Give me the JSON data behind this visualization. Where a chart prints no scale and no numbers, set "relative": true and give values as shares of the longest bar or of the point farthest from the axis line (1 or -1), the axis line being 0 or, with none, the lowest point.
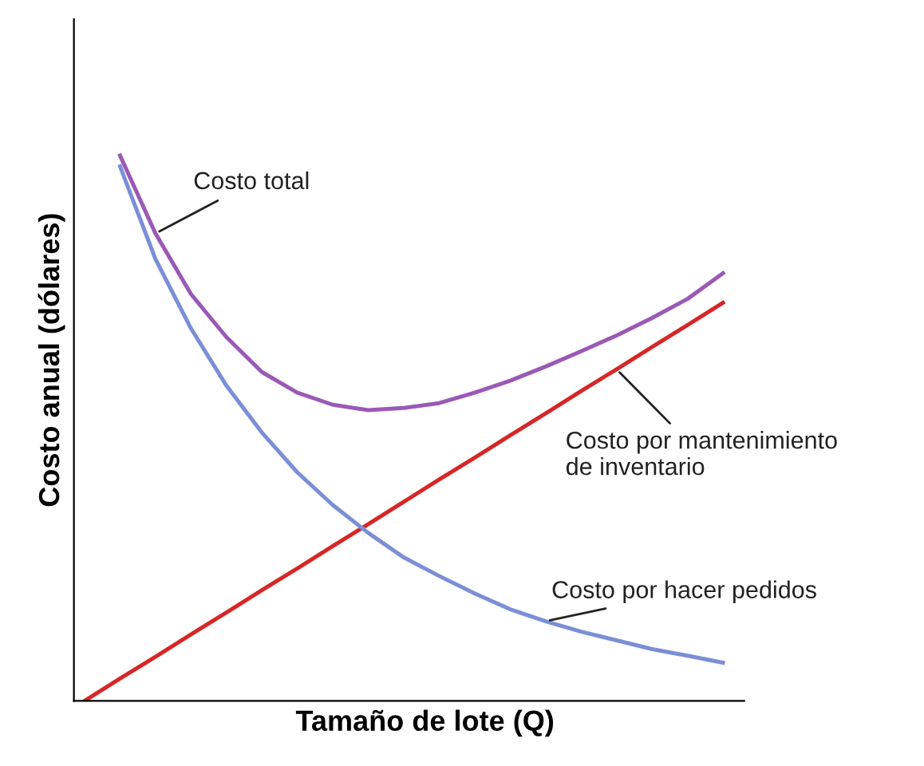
{
  "chart_data": {
    "type": "line",
    "relative": true,
    "xlabel": "Tamaño de lote (Q)",
    "ylabel": "Costo anual (dólares)",
    "categories": [
      null,
      null,
      null,
      null,
      null,
      null,
      null,
      null,
      null,
      null,
      null,
      null,
      null,
      null,
      null,
      null,
      null,
      null,
      null
    ],
    "series": [
      {
        "name": "Costo total",
        "color": "#9b59b6",
        "values": [
          null,
          1,
          0.857,
          0.746,
          0.667,
          0.603,
          0.565,
          0.543,
          0.533,
          0.537,
          0.546,
          0.565,
          0.587,
          0.613,
          0.641,
          0.67,
          0.702,
          0.737,
          0.784
        ]
      },
      {
        "name": "Costo por mantenimiento\nde inventario",
        "color": "#d62728",
        "values": [
          0,
          0.041,
          0.081,
          0.122,
          0.162,
          0.203,
          0.243,
          0.284,
          0.324,
          0.365,
          0.406,
          0.446,
          0.487,
          0.527,
          0.568,
          0.608,
          0.649,
          0.689,
          0.73
        ]
      },
      {
        "name": "Costo por hacer pedidos",
        "color": "#7b8fd6",
        "values": [
          null,
          0.98,
          0.81,
          0.683,
          0.578,
          0.492,
          0.419,
          0.359,
          0.308,
          0.263,
          0.229,
          0.197,
          0.168,
          0.146,
          0.127,
          0.111,
          0.095,
          0.083,
          0.07
        ]
      }
    ],
    "legend": false,
    "marker": "none",
    "line_style": "solid"
  }
}
